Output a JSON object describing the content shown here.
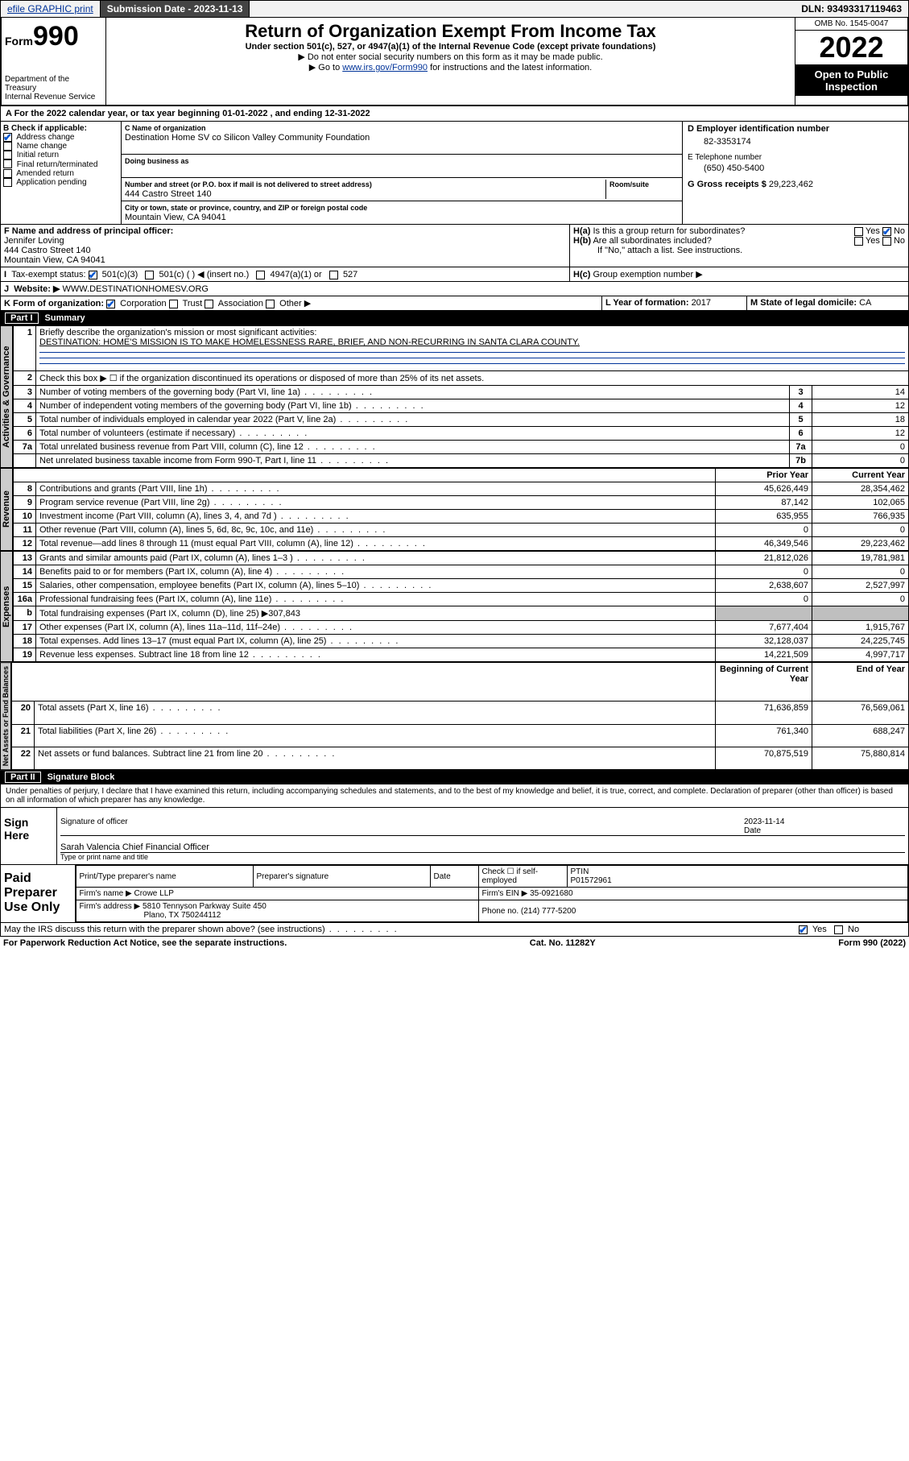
{
  "topbar": {
    "efile": "efile GRAPHIC print",
    "subdate_lbl": "Submission Date - ",
    "subdate": "2023-11-13",
    "dln_lbl": "DLN: ",
    "dln": "93493317119463"
  },
  "header": {
    "form_pre": "Form",
    "form_num": "990",
    "dept": "Department of the Treasury",
    "irs": "Internal Revenue Service",
    "title": "Return of Organization Exempt From Income Tax",
    "sub": "Under section 501(c), 527, or 4947(a)(1) of the Internal Revenue Code (except private foundations)",
    "note1": "▶ Do not enter social security numbers on this form as it may be made public.",
    "note2_pre": "▶ Go to ",
    "note2_link": "www.irs.gov/Form990",
    "note2_post": " for instructions and the latest information.",
    "omb": "OMB No. 1545-0047",
    "year": "2022",
    "open": "Open to Public Inspection"
  },
  "A": {
    "text_pre": "A For the 2022 calendar year, or tax year beginning ",
    "begin": "01-01-2022",
    "mid": " , and ending ",
    "end": "12-31-2022"
  },
  "B": {
    "lbl": "B Check if applicable:",
    "items": [
      "Address change",
      "Name change",
      "Initial return",
      "Final return/terminated",
      "Amended return",
      "Application pending"
    ],
    "checked": [
      true,
      false,
      false,
      false,
      false,
      false
    ]
  },
  "C": {
    "name_lbl": "C Name of organization",
    "name": "Destination Home SV co Silicon Valley Community Foundation",
    "dba_lbl": "Doing business as",
    "dba": "",
    "addr_lbl": "Number and street (or P.O. box if mail is not delivered to street address)",
    "room_lbl": "Room/suite",
    "addr": "444 Castro Street 140",
    "city_lbl": "City or town, state or province, country, and ZIP or foreign postal code",
    "city": "Mountain View, CA  94041"
  },
  "D": {
    "lbl": "D Employer identification number",
    "val": "82-3353174"
  },
  "E": {
    "lbl": "E Telephone number",
    "val": "(650) 450-5400"
  },
  "G": {
    "lbl": "G Gross receipts $ ",
    "val": "29,223,462"
  },
  "F": {
    "lbl": "F Name and address of principal officer:",
    "name": "Jennifer Loving",
    "addr1": "444 Castro Street 140",
    "addr2": "Mountain View, CA  94041"
  },
  "H": {
    "a": "Is this a group return for subordinates?",
    "a_yes": "Yes",
    "a_no": "No",
    "b": "Are all subordinates included?",
    "b_note": "If \"No,\" attach a list. See instructions.",
    "c": "Group exemption number ▶"
  },
  "I": {
    "lbl": "Tax-exempt status:",
    "opts": [
      "501(c)(3)",
      "501(c) ( ) ◀ (insert no.)",
      "4947(a)(1) or",
      "527"
    ],
    "checked": 0
  },
  "J": {
    "lbl": "Website: ▶",
    "val": "WWW.DESTINATIONHOMESV.ORG"
  },
  "K": {
    "lbl": "K Form of organization:",
    "opts": [
      "Corporation",
      "Trust",
      "Association",
      "Other ▶"
    ],
    "checked": 0
  },
  "L": {
    "lbl": "L Year of formation: ",
    "val": "2017"
  },
  "M": {
    "lbl": "M State of legal domicile: ",
    "val": "CA"
  },
  "part1": {
    "lbl": "Part I",
    "title": "Summary"
  },
  "gov": {
    "label": "Activities & Governance",
    "q1_lbl": "Briefly describe the organization's mission or most significant activities:",
    "q1_val": "DESTINATION: HOME'S MISSION IS TO MAKE HOMELESSNESS RARE, BRIEF, AND NON-RECURRING IN SANTA CLARA COUNTY.",
    "q2": "Check this box ▶ ☐ if the organization discontinued its operations or disposed of more than 25% of its net assets.",
    "rows": [
      {
        "n": "3",
        "t": "Number of voting members of the governing body (Part VI, line 1a)",
        "box": "3",
        "v": "14"
      },
      {
        "n": "4",
        "t": "Number of independent voting members of the governing body (Part VI, line 1b)",
        "box": "4",
        "v": "12"
      },
      {
        "n": "5",
        "t": "Total number of individuals employed in calendar year 2022 (Part V, line 2a)",
        "box": "5",
        "v": "18"
      },
      {
        "n": "6",
        "t": "Total number of volunteers (estimate if necessary)",
        "box": "6",
        "v": "12"
      },
      {
        "n": "7a",
        "t": "Total unrelated business revenue from Part VIII, column (C), line 12",
        "box": "7a",
        "v": "0"
      },
      {
        "n": "",
        "t": "Net unrelated business taxable income from Form 990-T, Part I, line 11",
        "box": "7b",
        "v": "0"
      }
    ]
  },
  "colhead": {
    "prior": "Prior Year",
    "current": "Current Year"
  },
  "rev": {
    "label": "Revenue",
    "rows": [
      {
        "n": "8",
        "t": "Contributions and grants (Part VIII, line 1h)",
        "p": "45,626,449",
        "c": "28,354,462"
      },
      {
        "n": "9",
        "t": "Program service revenue (Part VIII, line 2g)",
        "p": "87,142",
        "c": "102,065"
      },
      {
        "n": "10",
        "t": "Investment income (Part VIII, column (A), lines 3, 4, and 7d )",
        "p": "635,955",
        "c": "766,935"
      },
      {
        "n": "11",
        "t": "Other revenue (Part VIII, column (A), lines 5, 6d, 8c, 9c, 10c, and 11e)",
        "p": "0",
        "c": "0"
      },
      {
        "n": "12",
        "t": "Total revenue—add lines 8 through 11 (must equal Part VIII, column (A), line 12)",
        "p": "46,349,546",
        "c": "29,223,462"
      }
    ]
  },
  "exp": {
    "label": "Expenses",
    "rows": [
      {
        "n": "13",
        "t": "Grants and similar amounts paid (Part IX, column (A), lines 1–3 )",
        "p": "21,812,026",
        "c": "19,781,981"
      },
      {
        "n": "14",
        "t": "Benefits paid to or for members (Part IX, column (A), line 4)",
        "p": "0",
        "c": "0"
      },
      {
        "n": "15",
        "t": "Salaries, other compensation, employee benefits (Part IX, column (A), lines 5–10)",
        "p": "2,638,607",
        "c": "2,527,997"
      },
      {
        "n": "16a",
        "t": "Professional fundraising fees (Part IX, column (A), line 11e)",
        "p": "0",
        "c": "0"
      }
    ],
    "row16b": {
      "n": "b",
      "t": "Total fundraising expenses (Part IX, column (D), line 25) ▶",
      "v": "307,843"
    },
    "rows2": [
      {
        "n": "17",
        "t": "Other expenses (Part IX, column (A), lines 11a–11d, 11f–24e)",
        "p": "7,677,404",
        "c": "1,915,767"
      },
      {
        "n": "18",
        "t": "Total expenses. Add lines 13–17 (must equal Part IX, column (A), line 25)",
        "p": "32,128,037",
        "c": "24,225,745"
      },
      {
        "n": "19",
        "t": "Revenue less expenses. Subtract line 18 from line 12",
        "p": "14,221,509",
        "c": "4,997,717"
      }
    ]
  },
  "na": {
    "label": "Net Assets or Fund Balances",
    "head": {
      "b": "Beginning of Current Year",
      "e": "End of Year"
    },
    "rows": [
      {
        "n": "20",
        "t": "Total assets (Part X, line 16)",
        "p": "71,636,859",
        "c": "76,569,061"
      },
      {
        "n": "21",
        "t": "Total liabilities (Part X, line 26)",
        "p": "761,340",
        "c": "688,247"
      },
      {
        "n": "22",
        "t": "Net assets or fund balances. Subtract line 21 from line 20",
        "p": "70,875,519",
        "c": "75,880,814"
      }
    ]
  },
  "part2": {
    "lbl": "Part II",
    "title": "Signature Block"
  },
  "decl": "Under penalties of perjury, I declare that I have examined this return, including accompanying schedules and statements, and to the best of my knowledge and belief, it is true, correct, and complete. Declaration of preparer (other than officer) is based on all information of which preparer has any knowledge.",
  "sign": {
    "here": "Sign Here",
    "sig_lbl": "Signature of officer",
    "date_lbl": "Date",
    "date": "2023-11-14",
    "name": "Sarah Valencia  Chief Financial Officer",
    "name_lbl": "Type or print name and title"
  },
  "paid": {
    "lbl": "Paid Preparer Use Only",
    "h": [
      "Print/Type preparer's name",
      "Preparer's signature",
      "Date"
    ],
    "check": "Check ☐ if self-employed",
    "ptin_lbl": "PTIN",
    "ptin": "P01572961",
    "firm_lbl": "Firm's name  ▶",
    "firm": "Crowe LLP",
    "ein_lbl": "Firm's EIN ▶",
    "ein": "35-0921680",
    "addr_lbl": "Firm's address ▶",
    "addr1": "5810 Tennyson Parkway Suite 450",
    "addr2": "Plano, TX  750244112",
    "phone_lbl": "Phone no. ",
    "phone": "(214) 777-5200"
  },
  "discuss": {
    "t": "May the IRS discuss this return with the preparer shown above? (see instructions)",
    "yes": "Yes",
    "no": "No"
  },
  "footer": {
    "l": "For Paperwork Reduction Act Notice, see the separate instructions.",
    "c": "Cat. No. 11282Y",
    "r": "Form 990 (2022)"
  }
}
